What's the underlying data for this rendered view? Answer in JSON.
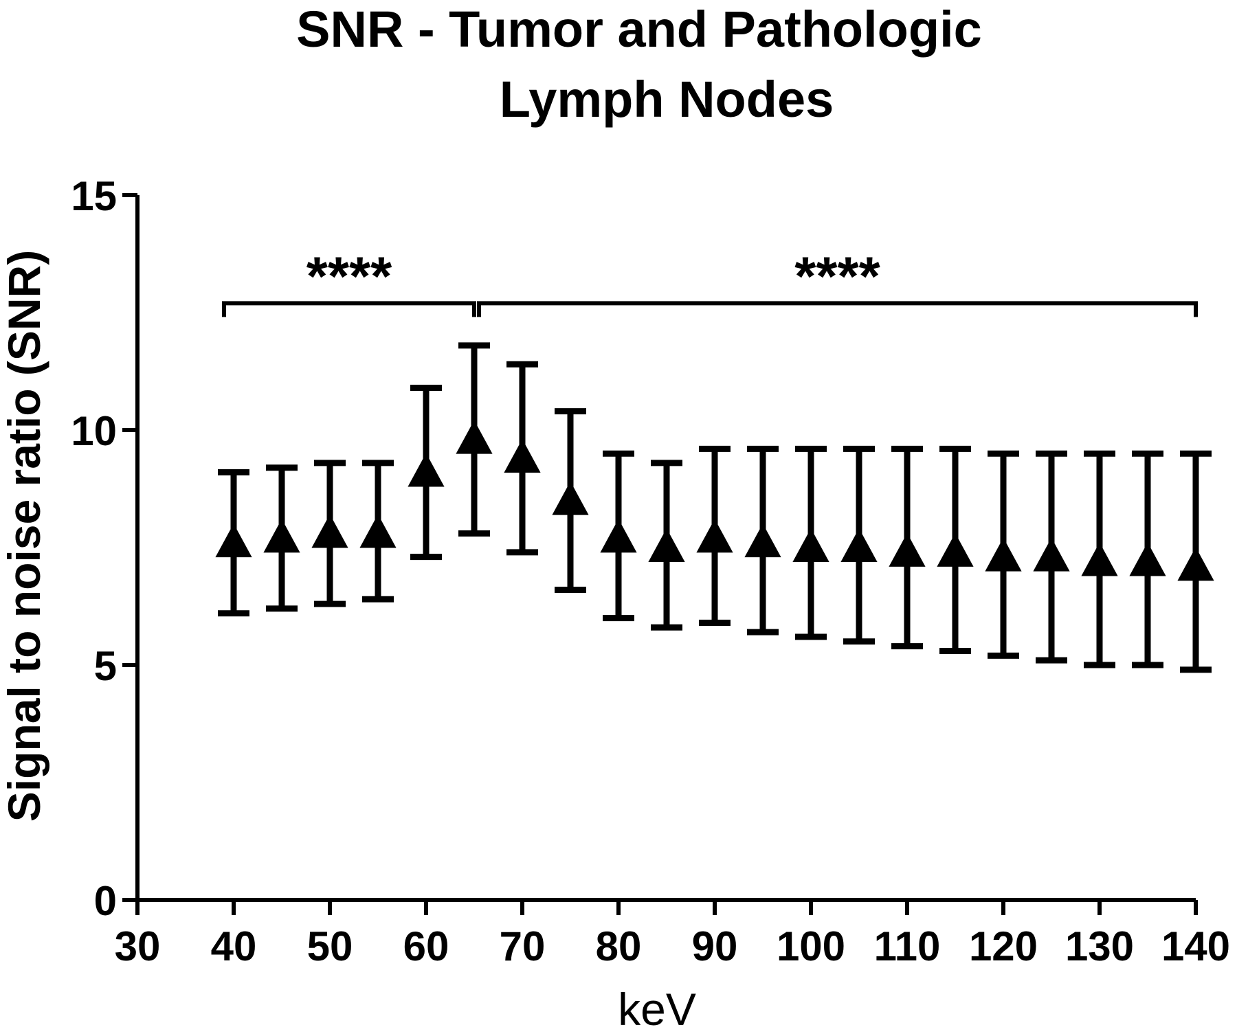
{
  "chart_data": {
    "type": "scatter",
    "title_lines": [
      "SNR - Tumor and Pathologic",
      "Lymph Nodes"
    ],
    "xlabel": "keV",
    "ylabel": "Signal to noise ratio (SNR)",
    "xlim": [
      30,
      140
    ],
    "ylim": [
      0,
      15
    ],
    "x_ticks": [
      30,
      40,
      50,
      60,
      70,
      80,
      90,
      100,
      110,
      120,
      130,
      140
    ],
    "y_ticks": [
      0,
      5,
      10,
      15
    ],
    "marker": "triangle",
    "color": "#000000",
    "points": [
      {
        "x": 40,
        "y": 7.6,
        "low": 6.1,
        "high": 9.1
      },
      {
        "x": 45,
        "y": 7.7,
        "low": 6.2,
        "high": 9.2
      },
      {
        "x": 50,
        "y": 7.8,
        "low": 6.3,
        "high": 9.3
      },
      {
        "x": 55,
        "y": 7.8,
        "low": 6.4,
        "high": 9.3
      },
      {
        "x": 60,
        "y": 9.1,
        "low": 7.3,
        "high": 10.9
      },
      {
        "x": 65,
        "y": 9.8,
        "low": 7.8,
        "high": 11.8
      },
      {
        "x": 70,
        "y": 9.4,
        "low": 7.4,
        "high": 11.4
      },
      {
        "x": 75,
        "y": 8.5,
        "low": 6.6,
        "high": 10.4
      },
      {
        "x": 80,
        "y": 7.7,
        "low": 6.0,
        "high": 9.5
      },
      {
        "x": 85,
        "y": 7.5,
        "low": 5.8,
        "high": 9.3
      },
      {
        "x": 90,
        "y": 7.7,
        "low": 5.9,
        "high": 9.6
      },
      {
        "x": 95,
        "y": 7.6,
        "low": 5.7,
        "high": 9.6
      },
      {
        "x": 100,
        "y": 7.5,
        "low": 5.6,
        "high": 9.6
      },
      {
        "x": 105,
        "y": 7.5,
        "low": 5.5,
        "high": 9.6
      },
      {
        "x": 110,
        "y": 7.4,
        "low": 5.4,
        "high": 9.6
      },
      {
        "x": 115,
        "y": 7.4,
        "low": 5.3,
        "high": 9.6
      },
      {
        "x": 120,
        "y": 7.3,
        "low": 5.2,
        "high": 9.5
      },
      {
        "x": 125,
        "y": 7.3,
        "low": 5.1,
        "high": 9.5
      },
      {
        "x": 130,
        "y": 7.2,
        "low": 5.0,
        "high": 9.5
      },
      {
        "x": 135,
        "y": 7.2,
        "low": 5.0,
        "high": 9.5
      },
      {
        "x": 140,
        "y": 7.1,
        "low": 4.9,
        "high": 9.5
      }
    ],
    "significance_brackets": [
      {
        "x_start": 39,
        "x_end": 65,
        "y": 12.7,
        "label": "****"
      },
      {
        "x_start": 65.5,
        "x_end": 140,
        "y": 12.7,
        "label": "****"
      }
    ]
  }
}
